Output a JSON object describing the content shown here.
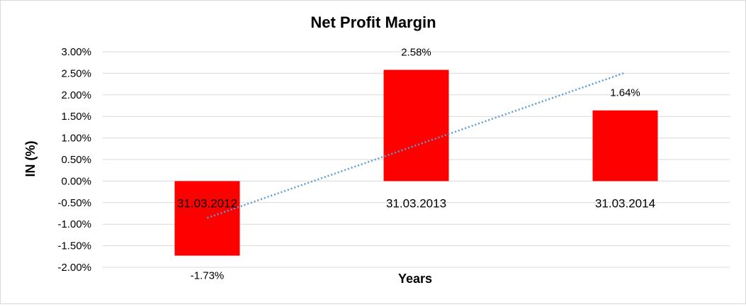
{
  "chart_data": {
    "type": "bar",
    "title": "Net Profit Margin",
    "xlabel": "Years",
    "ylabel": "IN (%)",
    "categories": [
      "31.03.2012",
      "31.03.2013",
      "31.03.2014"
    ],
    "values": [
      -1.73,
      2.58,
      1.64
    ],
    "data_labels": [
      "-1.73%",
      "2.58%",
      "1.64%"
    ],
    "ylim": [
      -2.0,
      3.0
    ],
    "yticks": [
      3.0,
      2.5,
      2.0,
      1.5,
      1.0,
      0.5,
      0.0,
      -0.5,
      -1.0,
      -1.5,
      -2.0
    ],
    "ytick_labels": [
      "3.00%",
      "2.50%",
      "2.00%",
      "1.50%",
      "1.00%",
      "0.50%",
      "0.00%",
      "-0.50%",
      "-1.00%",
      "-1.50%",
      "-2.00%"
    ],
    "grid": true,
    "bar_color": "#ff0000",
    "trendline": {
      "type": "linear",
      "style": "dotted",
      "color": "#5b9bd5"
    }
  }
}
